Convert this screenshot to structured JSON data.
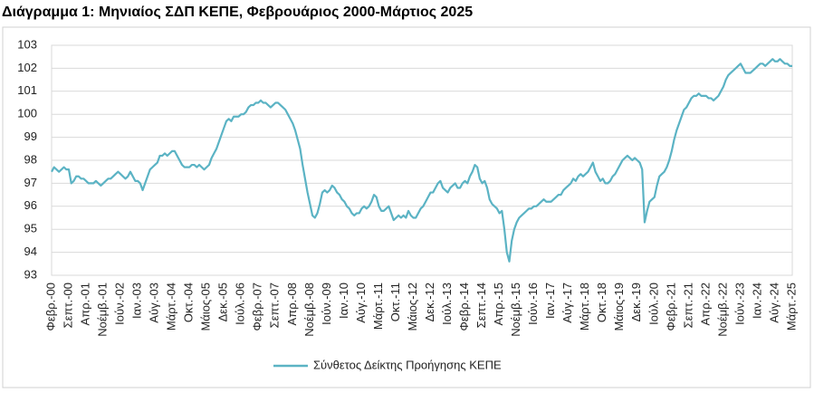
{
  "chart_data": {
    "type": "line",
    "title": "Διάγραμμα 1: Μηνιαίος ΣΔΠ ΚΕΠΕ, Φεβρουάριος 2000-Μάρτιος 2025",
    "categories": [
      "Φεβρ.-00",
      null,
      null,
      null,
      null,
      null,
      null,
      "Σεπτ.-00",
      null,
      null,
      null,
      null,
      null,
      null,
      "Απρ.-01",
      null,
      null,
      null,
      null,
      null,
      null,
      "Νοέμβ.-01",
      null,
      null,
      null,
      null,
      null,
      null,
      "Ιούν.-02",
      null,
      null,
      null,
      null,
      null,
      null,
      "Ιαν.-03",
      null,
      null,
      null,
      null,
      null,
      null,
      "Αύγ.-03",
      null,
      null,
      null,
      null,
      null,
      null,
      "Μάρτ.-04",
      null,
      null,
      null,
      null,
      null,
      null,
      "Οκτ.-04",
      null,
      null,
      null,
      null,
      null,
      null,
      "Μάιος-05",
      null,
      null,
      null,
      null,
      null,
      null,
      "Δεκ.-05",
      null,
      null,
      null,
      null,
      null,
      null,
      "Ιούλ.-06",
      null,
      null,
      null,
      null,
      null,
      null,
      "Φεβρ.-07",
      null,
      null,
      null,
      null,
      null,
      null,
      "Σεπτ.-07",
      null,
      null,
      null,
      null,
      null,
      null,
      "Απρ.-08",
      null,
      null,
      null,
      null,
      null,
      null,
      "Νοέμβ.-08",
      null,
      null,
      null,
      null,
      null,
      null,
      "Ιούν.-09",
      null,
      null,
      null,
      null,
      null,
      null,
      "Ιαν.-10",
      null,
      null,
      null,
      null,
      null,
      null,
      "Αύγ.-10",
      null,
      null,
      null,
      null,
      null,
      null,
      "Μάρτ.-11",
      null,
      null,
      null,
      null,
      null,
      null,
      "Οκτ.-11",
      null,
      null,
      null,
      null,
      null,
      null,
      "Μάιος-12",
      null,
      null,
      null,
      null,
      null,
      null,
      "Δεκ.-12",
      null,
      null,
      null,
      null,
      null,
      null,
      "Ιούλ.-13",
      null,
      null,
      null,
      null,
      null,
      null,
      "Φεβρ.-14",
      null,
      null,
      null,
      null,
      null,
      null,
      "Σεπτ.-14",
      null,
      null,
      null,
      null,
      null,
      null,
      "Απρ.-15",
      null,
      null,
      null,
      null,
      null,
      null,
      "Νοέμβ.-15",
      null,
      null,
      null,
      null,
      null,
      null,
      "Ιούν.-16",
      null,
      null,
      null,
      null,
      null,
      null,
      "Ιαν.-17",
      null,
      null,
      null,
      null,
      null,
      null,
      "Αύγ.-17",
      null,
      null,
      null,
      null,
      null,
      null,
      "Μάρτ.-18",
      null,
      null,
      null,
      null,
      null,
      null,
      "Οκτ.-18",
      null,
      null,
      null,
      null,
      null,
      null,
      "Μάιος-19",
      null,
      null,
      null,
      null,
      null,
      null,
      "Δεκ.-19",
      null,
      null,
      null,
      null,
      null,
      null,
      "Ιούλ.-20",
      null,
      null,
      null,
      null,
      null,
      null,
      "Φεβρ.-21",
      null,
      null,
      null,
      null,
      null,
      null,
      "Σεπτ.-21",
      null,
      null,
      null,
      null,
      null,
      null,
      "Απρ.-22",
      null,
      null,
      null,
      null,
      null,
      null,
      "Νοέμβ.-22",
      null,
      null,
      null,
      null,
      null,
      null,
      "Ιούν.-23",
      null,
      null,
      null,
      null,
      null,
      null,
      "Ιαν.-24",
      null,
      null,
      null,
      null,
      null,
      null,
      "Αύγ.-24",
      null,
      null,
      null,
      null,
      null,
      null,
      "Μάρτ.-25"
    ],
    "series": [
      {
        "name": "Σύνθετος Δείκτης Προήγησης ΚΕΠΕ",
        "color": "#5bb3c4",
        "values": [
          97.5,
          97.7,
          97.6,
          97.5,
          97.6,
          97.7,
          97.6,
          97.6,
          97.0,
          97.1,
          97.3,
          97.3,
          97.2,
          97.2,
          97.1,
          97.0,
          97.0,
          97.0,
          97.1,
          97.0,
          96.9,
          97.0,
          97.1,
          97.2,
          97.2,
          97.3,
          97.4,
          97.5,
          97.4,
          97.3,
          97.2,
          97.3,
          97.5,
          97.3,
          97.1,
          97.1,
          97.0,
          96.7,
          97.0,
          97.3,
          97.6,
          97.7,
          97.8,
          97.9,
          98.2,
          98.2,
          98.3,
          98.2,
          98.3,
          98.4,
          98.4,
          98.2,
          98.0,
          97.8,
          97.7,
          97.7,
          97.7,
          97.8,
          97.8,
          97.7,
          97.8,
          97.7,
          97.6,
          97.7,
          97.8,
          98.1,
          98.3,
          98.5,
          98.8,
          99.1,
          99.4,
          99.7,
          99.8,
          99.7,
          99.9,
          99.9,
          99.9,
          100.0,
          100.0,
          100.1,
          100.3,
          100.4,
          100.4,
          100.5,
          100.5,
          100.6,
          100.5,
          100.5,
          100.4,
          100.3,
          100.4,
          100.5,
          100.5,
          100.4,
          100.3,
          100.2,
          100.0,
          99.8,
          99.6,
          99.3,
          98.9,
          98.5,
          97.8,
          97.2,
          96.6,
          96.1,
          95.6,
          95.5,
          95.7,
          96.1,
          96.6,
          96.7,
          96.6,
          96.7,
          96.9,
          96.8,
          96.6,
          96.5,
          96.3,
          96.2,
          96.0,
          95.9,
          95.7,
          95.6,
          95.7,
          95.7,
          95.9,
          96.0,
          95.9,
          96.0,
          96.2,
          96.5,
          96.4,
          96.0,
          95.8,
          95.8,
          95.9,
          96.0,
          95.7,
          95.4,
          95.5,
          95.6,
          95.5,
          95.6,
          95.5,
          95.8,
          95.6,
          95.5,
          95.5,
          95.7,
          95.9,
          96.0,
          96.2,
          96.4,
          96.6,
          96.6,
          96.8,
          97.0,
          97.1,
          96.8,
          96.7,
          96.6,
          96.8,
          96.9,
          97.0,
          96.8,
          96.8,
          97.0,
          97.1,
          97.0,
          97.3,
          97.5,
          97.8,
          97.7,
          97.2,
          97.0,
          97.1,
          96.8,
          96.3,
          96.1,
          96.0,
          95.9,
          95.7,
          95.8,
          95.0,
          94.0,
          93.6,
          94.5,
          95.0,
          95.3,
          95.5,
          95.6,
          95.7,
          95.8,
          95.9,
          95.9,
          96.0,
          96.0,
          96.1,
          96.2,
          96.3,
          96.2,
          96.2,
          96.2,
          96.3,
          96.4,
          96.5,
          96.5,
          96.7,
          96.8,
          96.9,
          97.0,
          97.2,
          97.1,
          97.3,
          97.4,
          97.3,
          97.4,
          97.5,
          97.7,
          97.9,
          97.5,
          97.3,
          97.1,
          97.2,
          97.0,
          97.0,
          97.1,
          97.3,
          97.4,
          97.6,
          97.8,
          98.0,
          98.1,
          98.2,
          98.1,
          98.0,
          98.1,
          98.0,
          97.9,
          97.6,
          95.3,
          95.8,
          96.2,
          96.3,
          96.4,
          96.9,
          97.3,
          97.4,
          97.5,
          97.7,
          98.0,
          98.4,
          98.9,
          99.3,
          99.6,
          99.9,
          100.2,
          100.3,
          100.5,
          100.7,
          100.8,
          100.8,
          100.9,
          100.8,
          100.8,
          100.8,
          100.7,
          100.7,
          100.6,
          100.7,
          100.8,
          101.0,
          101.2,
          101.5,
          101.7,
          101.8,
          101.9,
          102.0,
          102.1,
          102.2,
          102.0,
          101.8,
          101.8,
          101.8,
          101.9,
          102.0,
          102.1,
          102.2,
          102.2,
          102.1,
          102.2,
          102.3,
          102.4,
          102.3,
          102.3,
          102.4,
          102.3,
          102.2,
          102.2,
          102.1,
          102.1
        ]
      }
    ],
    "ylim": [
      93,
      103
    ],
    "yticks": [
      93,
      94,
      95,
      96,
      97,
      98,
      99,
      100,
      101,
      102,
      103
    ],
    "grid": true
  }
}
